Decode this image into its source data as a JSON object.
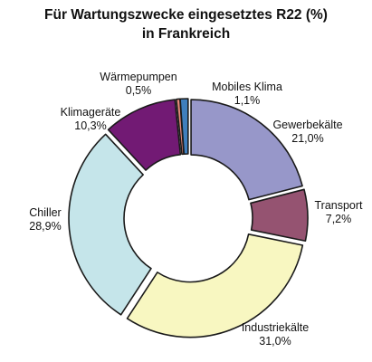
{
  "chart_data": {
    "type": "pie",
    "title_line1": "Für Wartungszwecke eingesetztes R22 (%)",
    "title_line2": "in Frankreich",
    "slices": [
      {
        "name": "Gewerbekälte",
        "value": 21.0,
        "value_label": "21,0%",
        "color": "#9797c9"
      },
      {
        "name": "Transport",
        "value": 7.2,
        "value_label": "7,2%",
        "color": "#955371"
      },
      {
        "name": "Industriekälte",
        "value": 31.0,
        "value_label": "31,0%",
        "color": "#f8f7c1"
      },
      {
        "name": "Chiller",
        "value": 28.9,
        "value_label": "28,9%",
        "color": "#c5e5ea"
      },
      {
        "name": "Klimageräte",
        "value": 10.3,
        "value_label": "10,3%",
        "color": "#721a74"
      },
      {
        "name": "Wärmepumpen",
        "value": 0.5,
        "value_label": "0,5%",
        "color": "#e7897b"
      },
      {
        "name": "Mobiles Klima",
        "value": 1.1,
        "value_label": "1,1%",
        "color": "#3f7fbd"
      }
    ]
  }
}
